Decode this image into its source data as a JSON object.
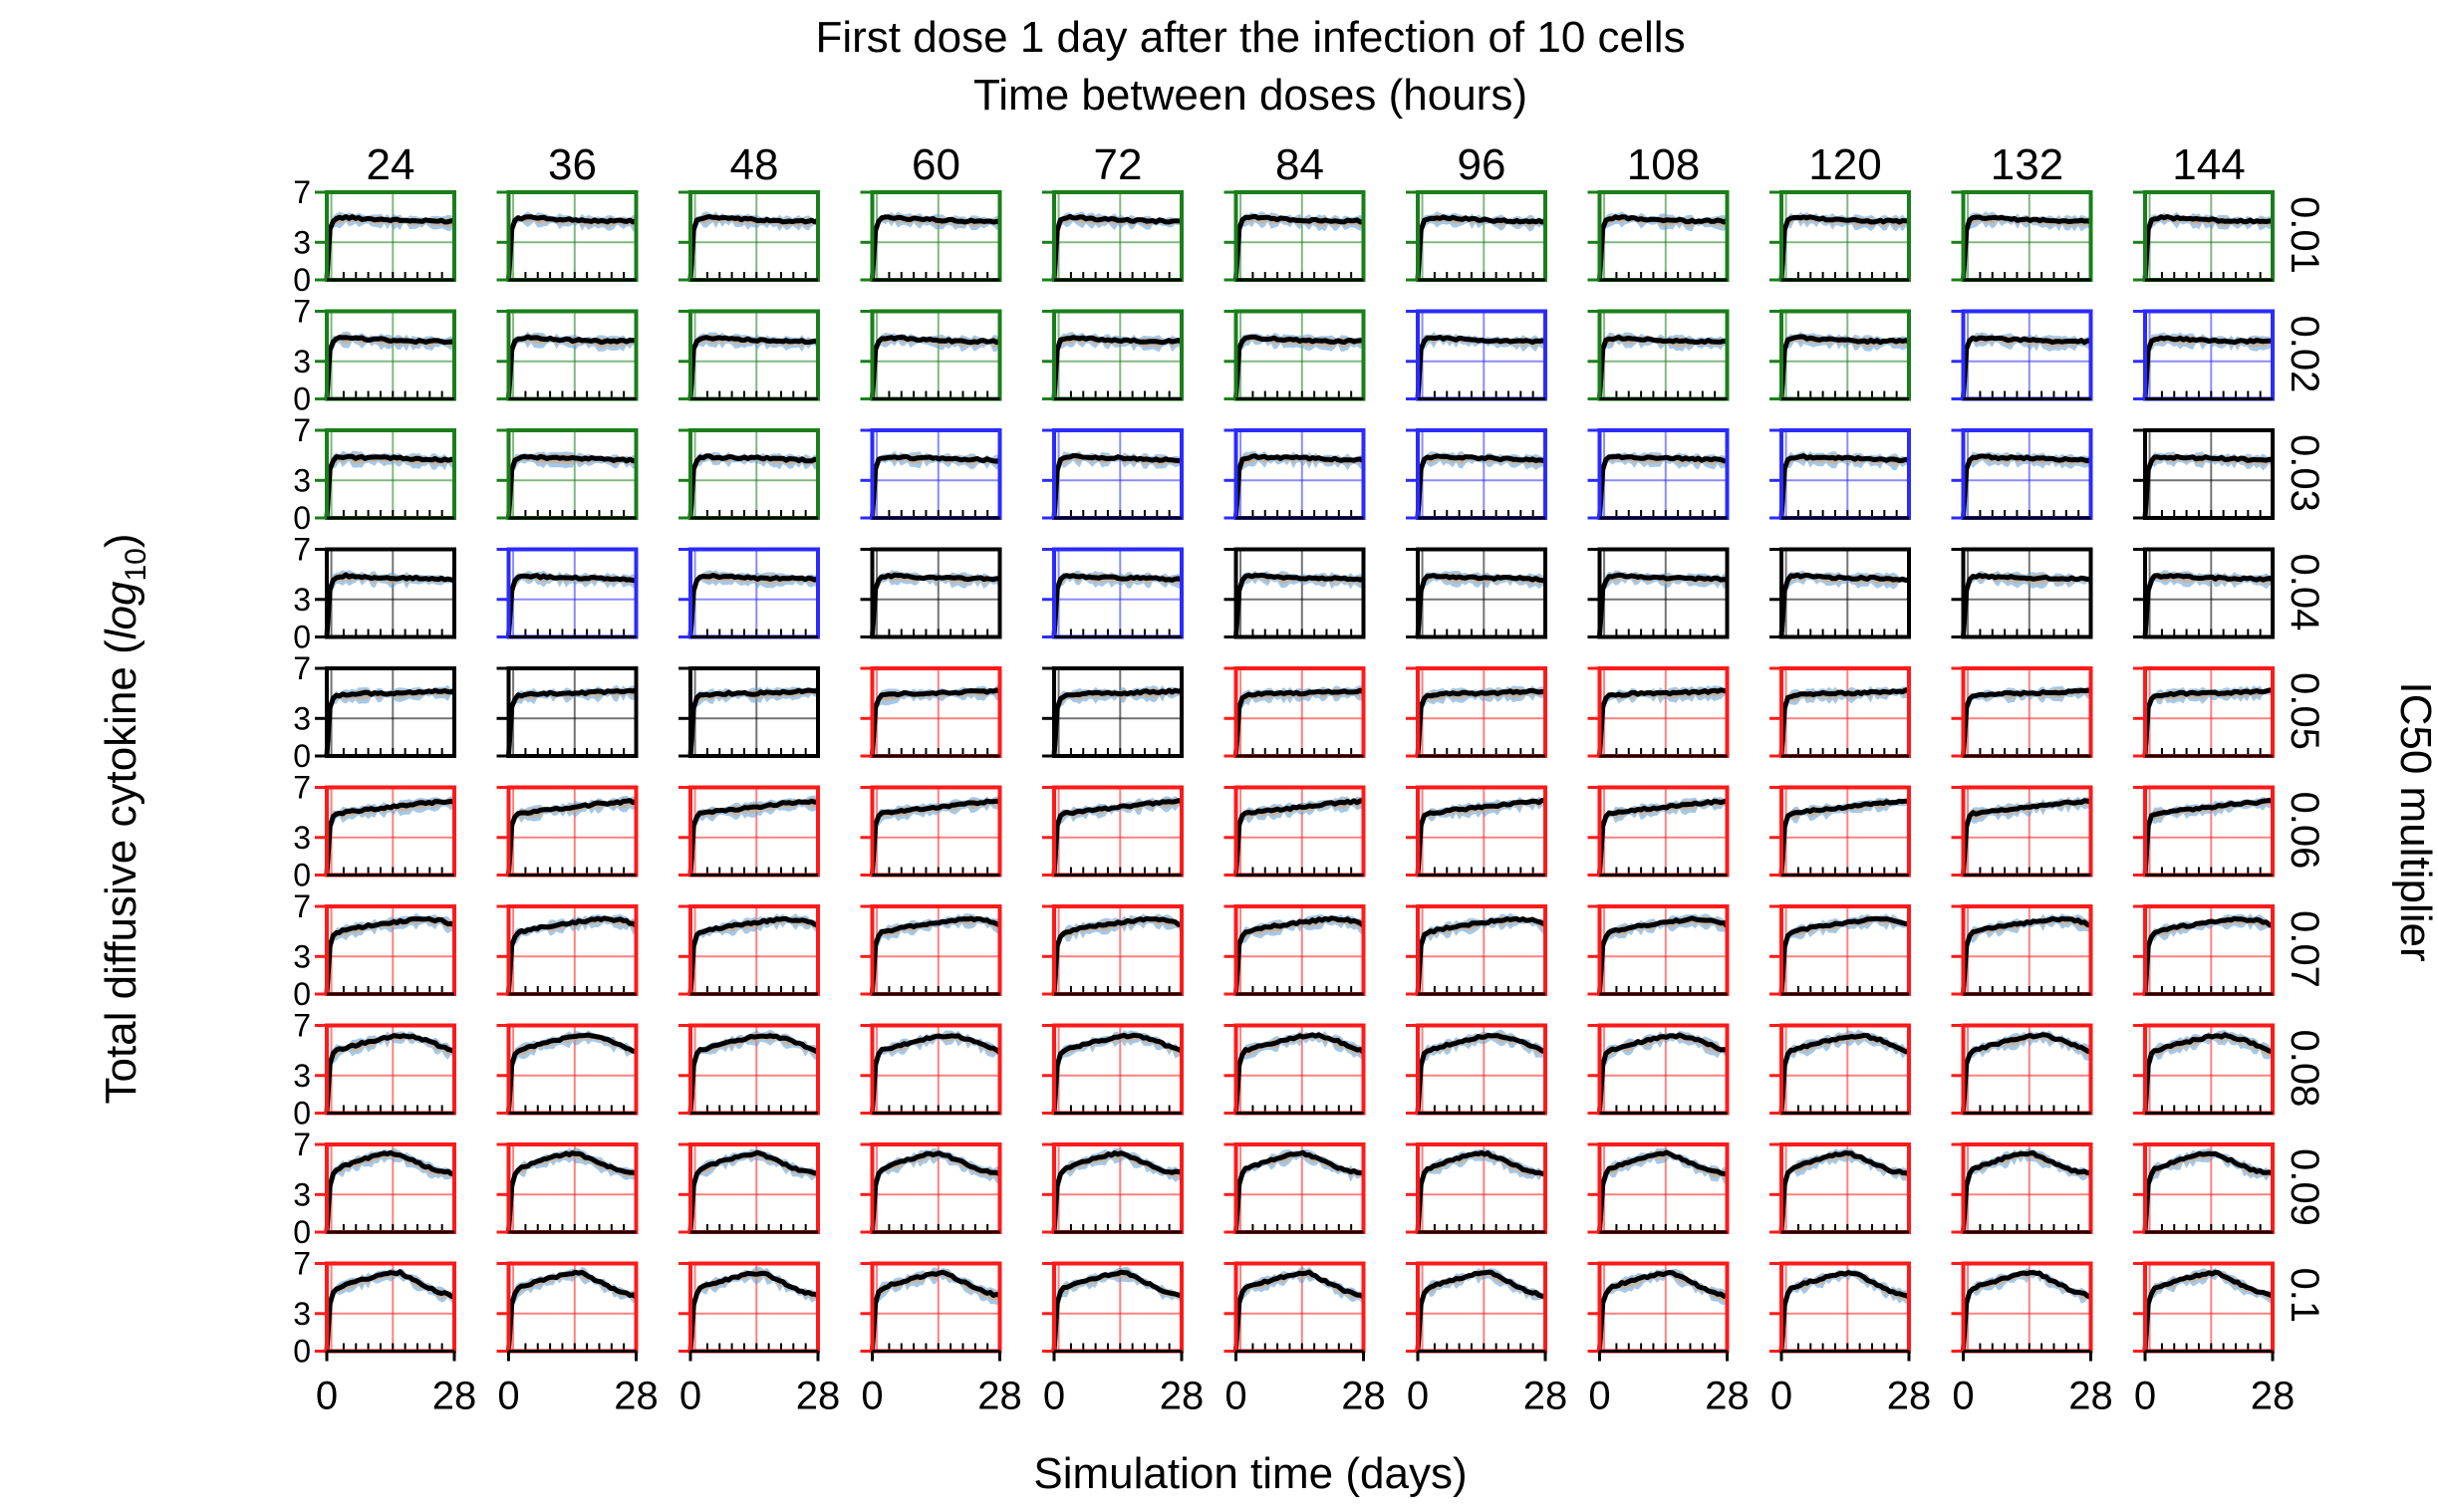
{
  "chart_data": {
    "type": "line",
    "layout": "small-multiples grid",
    "title": "First dose 1 day after the infection of 10 cells",
    "subtitle": "Time between doses (hours)",
    "xlabel": "Simulation time (days)",
    "ylabel": "Total diffusive cytokine (",
    "ylabel_math_base": "log",
    "ylabel_math_sub": "10",
    "ylabel_close": ")",
    "right_label": "IC50 multiplier",
    "columns": [
      "24",
      "36",
      "48",
      "60",
      "72",
      "84",
      "96",
      "108",
      "120",
      "132",
      "144"
    ],
    "rows": [
      "0.01",
      "0.02",
      "0.03",
      "0.04",
      "0.05",
      "0.06",
      "0.07",
      "0.08",
      "0.09",
      "0.1"
    ],
    "yticks": [
      "7",
      "3",
      "0"
    ],
    "ytick_values": [
      7,
      3,
      0
    ],
    "xticks": [
      "0",
      "28"
    ],
    "xtick_values": [
      0,
      28
    ],
    "xlim": [
      0,
      28
    ],
    "ylim": [
      0,
      7
    ],
    "frame_colors": {
      "g": "#1a7f1a",
      "b": "#2b2bff",
      "k": "#000000",
      "r": "#ff1a1a"
    },
    "frame_color_grid": [
      [
        "g",
        "g",
        "g",
        "g",
        "g",
        "g",
        "g",
        "g",
        "g",
        "g",
        "g"
      ],
      [
        "g",
        "g",
        "g",
        "g",
        "g",
        "g",
        "b",
        "g",
        "g",
        "b",
        "b"
      ],
      [
        "g",
        "g",
        "g",
        "b",
        "b",
        "b",
        "b",
        "b",
        "b",
        "b",
        "k"
      ],
      [
        "k",
        "b",
        "b",
        "k",
        "b",
        "k",
        "k",
        "k",
        "k",
        "k",
        "k"
      ],
      [
        "k",
        "k",
        "k",
        "r",
        "k",
        "r",
        "r",
        "r",
        "r",
        "r",
        "r"
      ],
      [
        "r",
        "r",
        "r",
        "r",
        "r",
        "r",
        "r",
        "r",
        "r",
        "r",
        "r"
      ],
      [
        "r",
        "r",
        "r",
        "r",
        "r",
        "r",
        "r",
        "r",
        "r",
        "r",
        "r"
      ],
      [
        "r",
        "r",
        "r",
        "r",
        "r",
        "r",
        "r",
        "r",
        "r",
        "r",
        "r"
      ],
      [
        "r",
        "r",
        "r",
        "r",
        "r",
        "r",
        "r",
        "r",
        "r",
        "r",
        "r"
      ],
      [
        "r",
        "r",
        "r",
        "r",
        "r",
        "r",
        "r",
        "r",
        "r",
        "r",
        "r"
      ]
    ],
    "series_colors": {
      "mean": "#000000",
      "band_a": "#5b9bd5",
      "band_b": "#e8a15a",
      "band_c": "#b0b0b0"
    },
    "row_profiles": [
      {
        "t": [
          0,
          0.8,
          2,
          4,
          8,
          14,
          20,
          28
        ],
        "y": [
          0,
          4.6,
          4.9,
          5.0,
          4.9,
          4.8,
          4.7,
          4.7
        ]
      },
      {
        "t": [
          0,
          0.8,
          2,
          4,
          8,
          14,
          20,
          28
        ],
        "y": [
          0,
          4.5,
          4.8,
          4.9,
          4.8,
          4.7,
          4.6,
          4.6
        ]
      },
      {
        "t": [
          0,
          0.8,
          2,
          4,
          8,
          14,
          20,
          28
        ],
        "y": [
          0,
          4.4,
          4.8,
          4.9,
          4.8,
          4.8,
          4.7,
          4.6
        ]
      },
      {
        "t": [
          0,
          0.8,
          2,
          4,
          8,
          14,
          20,
          28
        ],
        "y": [
          0,
          4.3,
          4.8,
          4.9,
          4.8,
          4.7,
          4.7,
          4.6
        ]
      },
      {
        "t": [
          0,
          0.8,
          2,
          4,
          8,
          14,
          20,
          28
        ],
        "y": [
          0,
          4.4,
          4.8,
          4.9,
          5.0,
          5.0,
          5.1,
          5.2
        ]
      },
      {
        "t": [
          0,
          0.8,
          2,
          4,
          8,
          14,
          20,
          28
        ],
        "y": [
          0,
          4.5,
          4.9,
          5.0,
          5.2,
          5.4,
          5.7,
          5.9
        ]
      },
      {
        "t": [
          0,
          0.8,
          2,
          4,
          8,
          14,
          20,
          25,
          28
        ],
        "y": [
          0,
          4.4,
          4.9,
          5.1,
          5.4,
          5.7,
          6.0,
          5.9,
          5.5
        ]
      },
      {
        "t": [
          0,
          0.8,
          2,
          4,
          8,
          14,
          18,
          22,
          28
        ],
        "y": [
          0,
          4.4,
          5.0,
          5.2,
          5.6,
          6.1,
          6.2,
          5.8,
          4.9
        ]
      },
      {
        "t": [
          0,
          0.8,
          2,
          4,
          8,
          12,
          15,
          19,
          24,
          28
        ],
        "y": [
          0,
          4.3,
          5.0,
          5.3,
          5.8,
          6.2,
          6.3,
          5.7,
          4.9,
          4.7
        ]
      },
      {
        "t": [
          0,
          0.8,
          2,
          4,
          8,
          12,
          16,
          19,
          24,
          28
        ],
        "y": [
          0,
          4.3,
          5.0,
          5.3,
          5.7,
          6.1,
          6.3,
          5.7,
          4.8,
          4.4
        ]
      }
    ]
  }
}
